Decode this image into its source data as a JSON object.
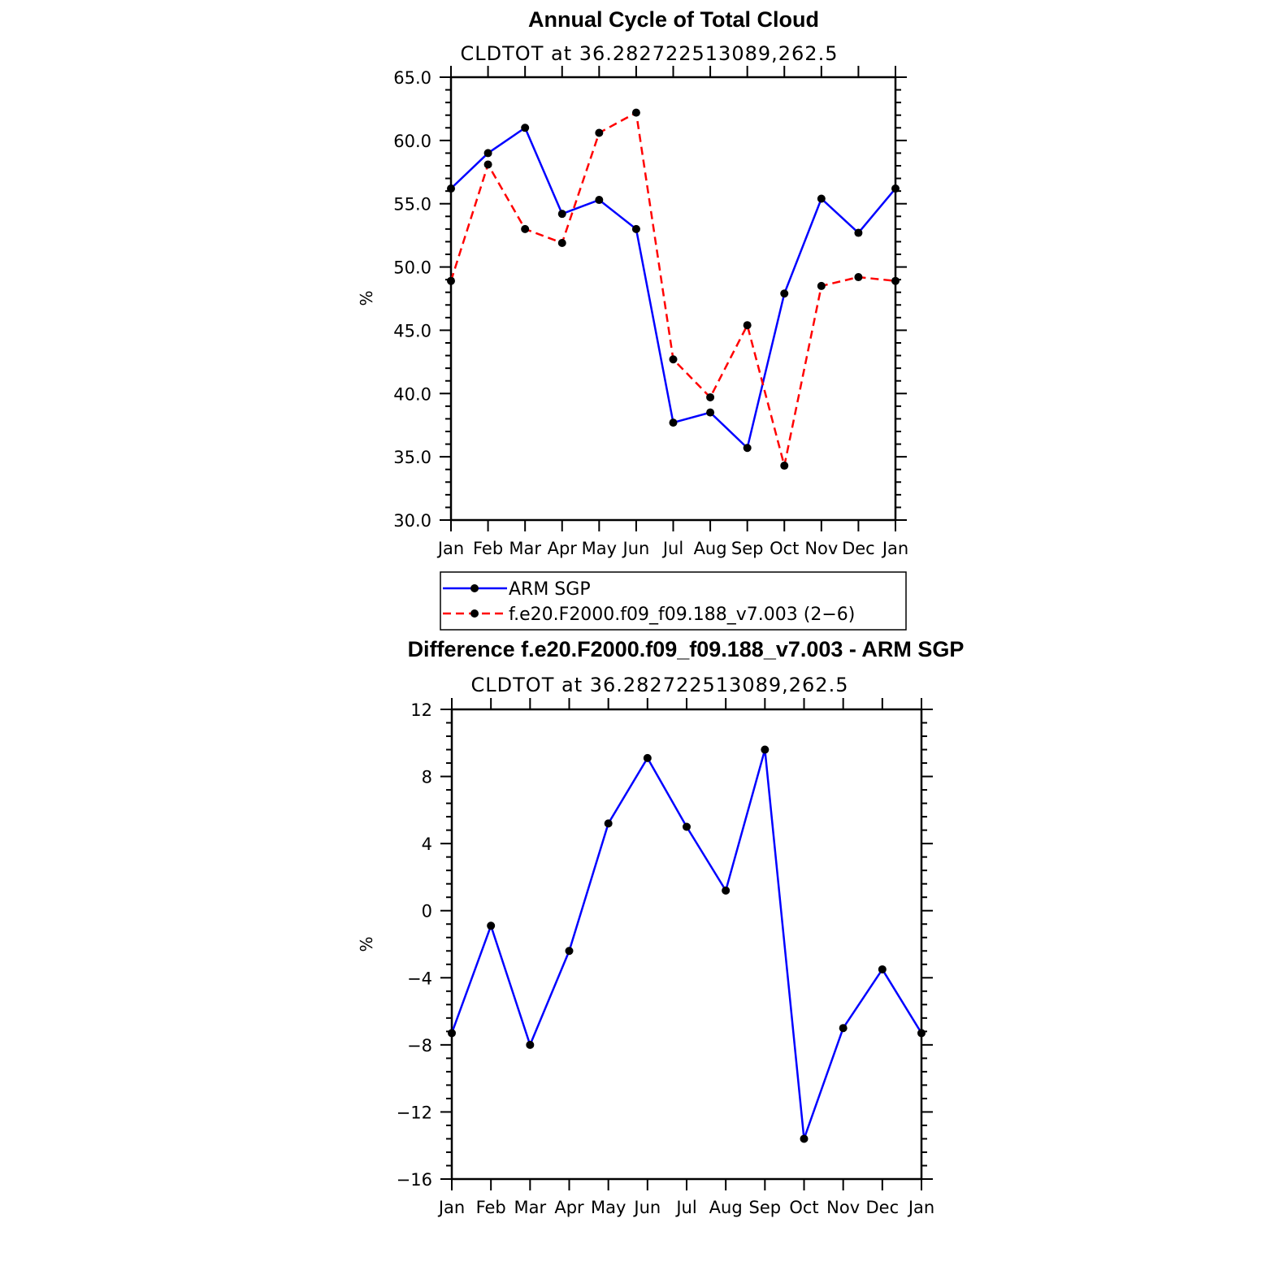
{
  "chart_data": [
    {
      "type": "line",
      "title": "Annual Cycle of Total Cloud",
      "subtitle": "CLDTOT at 36.282722513089,262.5",
      "xlabel": "",
      "ylabel": "%",
      "categories": [
        "Jan",
        "Feb",
        "Mar",
        "Apr",
        "May",
        "Jun",
        "Jul",
        "Aug",
        "Sep",
        "Oct",
        "Nov",
        "Dec",
        "Jan"
      ],
      "ylim": [
        30,
        65
      ],
      "ytick_labels": [
        "30.0",
        "35.0",
        "40.0",
        "45.0",
        "50.0",
        "55.0",
        "60.0",
        "65.0"
      ],
      "legend_placement": "below",
      "series": [
        {
          "name": "ARM SGP",
          "color": "#0000ff",
          "style": "solid",
          "values": [
            56.2,
            59.0,
            61.0,
            54.2,
            55.3,
            53.0,
            37.7,
            38.5,
            35.7,
            47.9,
            55.4,
            52.7,
            56.2
          ]
        },
        {
          "name": "f.e20.F2000.f09_f09.188_v7.003 (2−6)",
          "color": "#ff0000",
          "style": "dashed",
          "values": [
            48.9,
            58.1,
            53.0,
            51.9,
            60.6,
            62.2,
            42.7,
            39.7,
            45.4,
            34.3,
            48.5,
            49.2,
            48.9
          ]
        }
      ]
    },
    {
      "type": "line",
      "title": "Difference f.e20.F2000.f09_f09.188_v7.003 - ARM SGP",
      "subtitle": "CLDTOT at 36.282722513089,262.5",
      "xlabel": "",
      "ylabel": "%",
      "categories": [
        "Jan",
        "Feb",
        "Mar",
        "Apr",
        "May",
        "Jun",
        "Jul",
        "Aug",
        "Sep",
        "Oct",
        "Nov",
        "Dec",
        "Jan"
      ],
      "ylim": [
        -16,
        12
      ],
      "ytick_labels": [
        "−16",
        "−12",
        "−8",
        "−4",
        "0",
        "4",
        "8",
        "12"
      ],
      "series": [
        {
          "color": "#0000ff",
          "style": "solid",
          "values": [
            -7.3,
            -0.9,
            -8.0,
            -2.4,
            5.2,
            9.1,
            5.0,
            1.2,
            9.6,
            -13.6,
            -7.0,
            -3.5,
            -7.3
          ]
        }
      ]
    }
  ]
}
